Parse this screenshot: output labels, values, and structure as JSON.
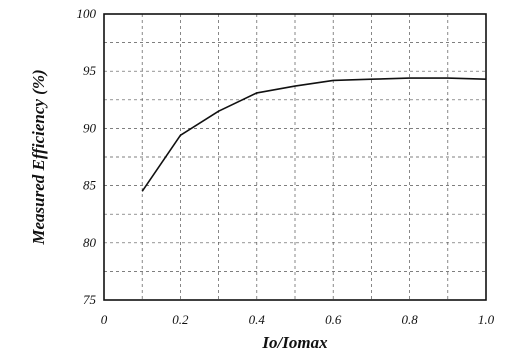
{
  "chart_data": {
    "type": "line",
    "xlabel": "Io/Iomax",
    "ylabel": "Measured Efficiency (%)",
    "xlim": [
      0,
      1.0
    ],
    "ylim": [
      75,
      100
    ],
    "x_ticks": [
      "0",
      "0.2",
      "0.4",
      "0.6",
      "0.8",
      "1.0"
    ],
    "y_ticks": [
      "75",
      "80",
      "85",
      "90",
      "95",
      "100"
    ],
    "grid": "dashed",
    "series": [
      {
        "x": [
          0.1,
          0.2,
          0.3,
          0.4,
          0.5,
          0.6,
          0.7,
          0.8,
          0.9,
          1.0
        ],
        "y": [
          84.5,
          89.4,
          91.5,
          93.1,
          93.7,
          94.2,
          94.3,
          94.4,
          94.4,
          94.3
        ]
      }
    ],
    "line_color": "#111111"
  }
}
